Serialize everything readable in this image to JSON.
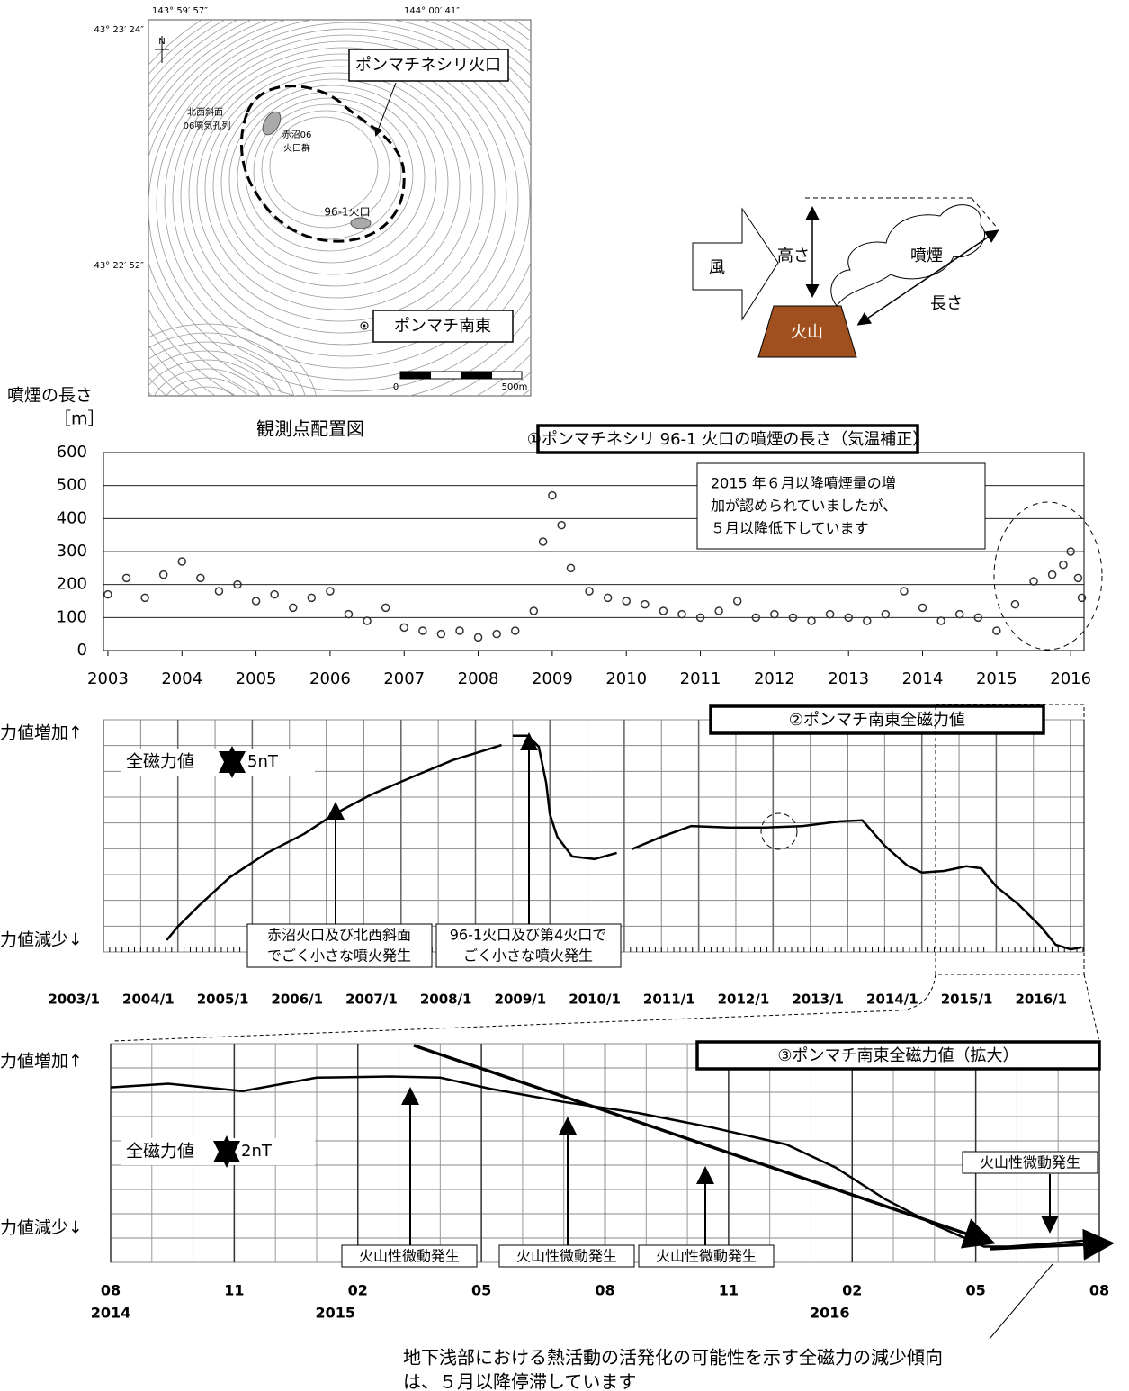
{
  "map": {
    "lon_labels": [
      "143° 59′ 57″",
      "144° 00′ 41″"
    ],
    "lat_labels": [
      "43° 23′ 24″",
      "43° 22′ 52″"
    ],
    "north": "N",
    "crater_label": "ポンマチネシリ火口",
    "labels": [
      "北西斜面",
      "06噴気孔列",
      "赤沼06",
      "火口群",
      "96-1火口"
    ],
    "station": "ポンマチ南東",
    "scale": [
      "0",
      "500m"
    ],
    "caption": "観測点配置図"
  },
  "diagram": {
    "wind": "風",
    "height": "高さ",
    "plume": "噴煙",
    "length": "長さ",
    "volcano": "火山"
  },
  "chart_data": [
    {
      "type": "scatter",
      "title": "①ポンマチネシリ 96-1 火口の噴煙の長さ（気温補正）",
      "y_label": [
        "噴煙の長さ",
        "［m］"
      ],
      "note": [
        "2015 年６月以降噴煙量の増",
        "加が認められていましたが、",
        "５月以降低下しています"
      ],
      "x": [
        2003.0,
        2003.25,
        2003.5,
        2003.75,
        2004.0,
        2004.25,
        2004.5,
        2004.75,
        2005.0,
        2005.25,
        2005.5,
        2005.75,
        2006.0,
        2006.25,
        2006.5,
        2006.75,
        2007.0,
        2007.25,
        2007.5,
        2007.75,
        2008.0,
        2008.25,
        2008.5,
        2008.75,
        2008.875,
        2009.0,
        2009.125,
        2009.25,
        2009.5,
        2009.75,
        2010.0,
        2010.25,
        2010.5,
        2010.75,
        2011.0,
        2011.25,
        2011.5,
        2011.75,
        2012.0,
        2012.25,
        2012.5,
        2012.75,
        2013.0,
        2013.25,
        2013.5,
        2013.75,
        2014.0,
        2014.25,
        2014.5,
        2014.75,
        2015.0,
        2015.25,
        2015.5,
        2015.75,
        2015.9,
        2016.0,
        2016.1,
        2016.15
      ],
      "values": [
        170,
        220,
        160,
        230,
        270,
        220,
        180,
        200,
        150,
        170,
        130,
        160,
        180,
        110,
        90,
        130,
        70,
        60,
        50,
        60,
        40,
        50,
        60,
        120,
        330,
        470,
        380,
        250,
        180,
        160,
        150,
        140,
        120,
        110,
        100,
        120,
        150,
        100,
        110,
        100,
        90,
        110,
        100,
        90,
        110,
        180,
        130,
        90,
        110,
        100,
        60,
        140,
        210,
        230,
        260,
        300,
        220,
        160
      ],
      "color": "#333333",
      "xlim": [
        2002.94,
        2016.18
      ],
      "xticks": [
        2003,
        2004,
        2005,
        2006,
        2007,
        2008,
        2009,
        2010,
        2011,
        2012,
        2013,
        2014,
        2015,
        2016
      ],
      "ylim": [
        0,
        600
      ],
      "yticks": [
        0,
        100,
        200,
        300,
        400,
        500,
        600
      ],
      "grid": true
    },
    {
      "type": "line",
      "title": "②ポンマチ南東全磁力値",
      "up_label": "力値増加↑",
      "down_label": "力値減少↓",
      "scale_label": "全磁力値",
      "scale_unit": "5nT",
      "events": [
        [
          "赤沼火口及び北西斜面",
          "でごく小さな噴火発生"
        ],
        [
          "96-1火口及び第4火口で",
          "ごく小さな噴火発生"
        ]
      ],
      "x": [
        2003.85,
        2004.0,
        2004.3,
        2004.7,
        2005.2,
        2005.7,
        2006.1,
        2006.6,
        2007.2,
        2007.7,
        2008.2,
        2008.35,
        2008.42,
        2008.5,
        2008.7,
        2008.85,
        2008.95,
        2009.0,
        2009.1,
        2009.3,
        2009.6,
        2009.9,
        2010.0,
        2010.1,
        2010.5,
        2010.9,
        2011.4,
        2011.9,
        2012.4,
        2012.9,
        2013.2,
        2013.5,
        2013.8,
        2014.0,
        2014.3,
        2014.6,
        2014.8,
        2015.0,
        2015.3,
        2015.6,
        2015.8,
        2016.0,
        2016.15
      ],
      "values": [
        2.3,
        4.9,
        9.2,
        14.5,
        19.2,
        22.9,
        26.7,
        30.5,
        34.2,
        37.2,
        39.4,
        40.1,
        null,
        41.9,
        41.9,
        39.8,
        32.8,
        26.7,
        22.3,
        18.5,
        18,
        19.2,
        null,
        19.9,
        22.3,
        24.4,
        24.1,
        24.1,
        24.4,
        25.3,
        25.5,
        20.6,
        16.8,
        15.4,
        15.7,
        16.6,
        16.2,
        12.7,
        9.2,
        4.9,
        1.4,
        0.5,
        0.9
      ],
      "color": "#000000",
      "xlim": [
        2003,
        2016.18
      ],
      "xticks": [
        {
          "value": 2003,
          "label": "2003/1"
        },
        {
          "value": 2004,
          "label": "2004/1"
        },
        {
          "value": 2005,
          "label": "2005/1"
        },
        {
          "value": 2006,
          "label": "2006/1"
        },
        {
          "value": 2007,
          "label": "2007/1"
        },
        {
          "value": 2008,
          "label": "2008/1"
        },
        {
          "value": 2009,
          "label": "2009/1"
        },
        {
          "value": 2010,
          "label": "2010/1"
        },
        {
          "value": 2011,
          "label": "2011/1"
        },
        {
          "value": 2012,
          "label": "2012/1"
        },
        {
          "value": 2013,
          "label": "2013/1"
        },
        {
          "value": 2014,
          "label": "2014/1"
        },
        {
          "value": 2015,
          "label": "2015/1"
        },
        {
          "value": 2016,
          "label": "2016/1"
        }
      ],
      "ylim": [
        0,
        45
      ],
      "yticks": [
        0,
        5,
        10,
        15,
        20,
        25,
        30,
        35,
        40,
        45
      ],
      "grid": true
    },
    {
      "type": "line",
      "title": "③ポンマチ南東全磁力値（拡大）",
      "up_label": "力値増加↑",
      "down_label": "力値減少↓",
      "scale_label": "全磁力値",
      "scale_unit": "2nT",
      "events": [
        "火山性微動発生",
        "火山性微動発生",
        "火山性微動発生",
        "火山性微動発生"
      ],
      "note": [
        "地下浅部における熱活動の活発化の可能性を示す全磁力の減少傾向",
        "は、５月以降停滞しています"
      ],
      "x": [
        2014.5833,
        2014.7,
        2014.85,
        2015.0,
        2015.15,
        2015.25,
        2015.35,
        2015.5,
        2015.65,
        2015.8,
        2015.95,
        2016.05,
        2016.15,
        2016.25,
        2016.35,
        2016.4,
        2016.5,
        2016.5833
      ],
      "values": [
        14.4,
        14.7,
        14.1,
        15.2,
        15.3,
        15.2,
        14.3,
        13.2,
        12.3,
        11.1,
        9.7,
        7.8,
        5.2,
        3.1,
        1.3,
        1.3,
        1.6,
        1.9
      ],
      "color": "#000000",
      "xlim": [
        2014.5833,
        2016.5833
      ],
      "xticks": [
        {
          "value": 2014.5833,
          "label": "08"
        },
        {
          "value": 2014.8333,
          "label": "11"
        },
        {
          "value": 2015.0833,
          "label": "02"
        },
        {
          "value": 2015.3333,
          "label": "05"
        },
        {
          "value": 2015.5833,
          "label": "08"
        },
        {
          "value": 2015.8333,
          "label": "11"
        },
        {
          "value": 2016.0833,
          "label": "02"
        },
        {
          "value": 2016.3333,
          "label": "05"
        },
        {
          "value": 2016.5833,
          "label": "08"
        }
      ],
      "year_labels": [
        {
          "value": 2014.5833,
          "label": "2014"
        },
        {
          "value": 2015.0833,
          "label": "2015"
        },
        {
          "value": 2016.0833,
          "label": "2016"
        }
      ],
      "ylim": [
        0,
        18
      ],
      "yticks": [
        0,
        2,
        4,
        6,
        8,
        10,
        12,
        14,
        16,
        18
      ],
      "grid": true
    }
  ]
}
